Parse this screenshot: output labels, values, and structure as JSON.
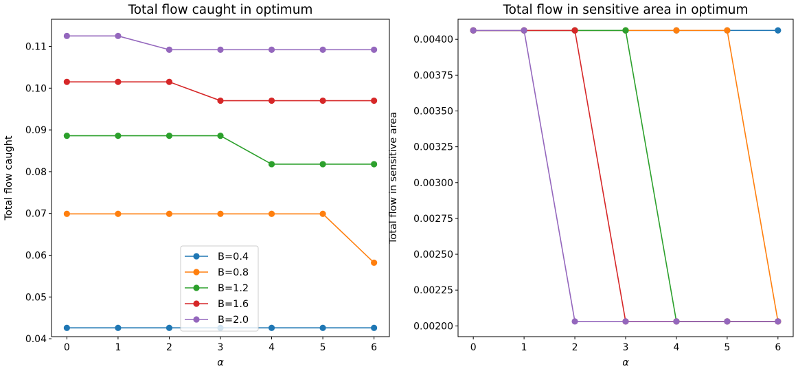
{
  "chart_data": [
    {
      "type": "line",
      "title": "Total flow caught in optimum",
      "xlabel": "α",
      "ylabel": "Total flow caught",
      "x": [
        0,
        1,
        2,
        3,
        4,
        5,
        6
      ],
      "xlim": [
        -0.3,
        6.3
      ],
      "ylim": [
        0.0405,
        0.1165
      ],
      "yticks": [
        0.04,
        0.05,
        0.06,
        0.07,
        0.08,
        0.09,
        0.1,
        0.11
      ],
      "ytick_labels": [
        "0.04",
        "0.05",
        "0.06",
        "0.07",
        "0.08",
        "0.09",
        "0.10",
        "0.11"
      ],
      "xticks": [
        0,
        1,
        2,
        3,
        4,
        5,
        6
      ],
      "xtick_labels": [
        "0",
        "1",
        "2",
        "3",
        "4",
        "5",
        "6"
      ],
      "legend": "lower-center",
      "grid": false,
      "series": [
        {
          "name": "B=0.4",
          "color": "#1f77b4",
          "values": [
            0.0426,
            0.0426,
            0.0426,
            0.0426,
            0.0426,
            0.0426,
            0.0426
          ]
        },
        {
          "name": "B=0.8",
          "color": "#ff7f0e",
          "values": [
            0.0699,
            0.0699,
            0.0699,
            0.0699,
            0.0699,
            0.0699,
            0.0582
          ]
        },
        {
          "name": "B=1.2",
          "color": "#2ca02c",
          "values": [
            0.0886,
            0.0886,
            0.0886,
            0.0886,
            0.0818,
            0.0818,
            0.0818
          ]
        },
        {
          "name": "B=1.6",
          "color": "#d62728",
          "values": [
            0.1015,
            0.1015,
            0.1015,
            0.097,
            0.097,
            0.097,
            0.097
          ]
        },
        {
          "name": "B=2.0",
          "color": "#9467bd",
          "values": [
            0.1125,
            0.1125,
            0.1092,
            0.1092,
            0.1092,
            0.1092,
            0.1092
          ]
        }
      ]
    },
    {
      "type": "line",
      "title": "Total flow in sensitive area in optimum",
      "xlabel": "α",
      "ylabel": "Total flow in sensitive area",
      "x": [
        0,
        1,
        2,
        3,
        4,
        5,
        6
      ],
      "xlim": [
        -0.3,
        6.3
      ],
      "ylim": [
        0.001925,
        0.00414
      ],
      "yticks": [
        0.002,
        0.00225,
        0.0025,
        0.00275,
        0.003,
        0.00325,
        0.0035,
        0.00375,
        0.004
      ],
      "ytick_labels": [
        "0.00200",
        "0.00225",
        "0.00250",
        "0.00275",
        "0.00300",
        "0.00325",
        "0.00350",
        "0.00375",
        "0.00400"
      ],
      "xticks": [
        0,
        1,
        2,
        3,
        4,
        5,
        6
      ],
      "xtick_labels": [
        "0",
        "1",
        "2",
        "3",
        "4",
        "5",
        "6"
      ],
      "grid": false,
      "series": [
        {
          "name": "B=0.4",
          "color": "#1f77b4",
          "values": [
            0.004062,
            0.004062,
            0.004062,
            0.004062,
            0.004062,
            0.004062,
            0.004062
          ]
        },
        {
          "name": "B=0.8",
          "color": "#ff7f0e",
          "values": [
            0.004062,
            0.004062,
            0.004062,
            0.004062,
            0.004062,
            0.004062,
            0.002031
          ]
        },
        {
          "name": "B=1.2",
          "color": "#2ca02c",
          "values": [
            0.004062,
            0.004062,
            0.004062,
            0.004062,
            0.002031,
            0.002031,
            0.002031
          ]
        },
        {
          "name": "B=1.6",
          "color": "#d62728",
          "values": [
            0.004062,
            0.004062,
            0.004062,
            0.002031,
            0.002031,
            0.002031,
            0.002031
          ]
        },
        {
          "name": "B=2.0",
          "color": "#9467bd",
          "values": [
            0.004062,
            0.004062,
            0.002031,
            0.002031,
            0.002031,
            0.002031,
            0.002031
          ]
        }
      ]
    }
  ]
}
